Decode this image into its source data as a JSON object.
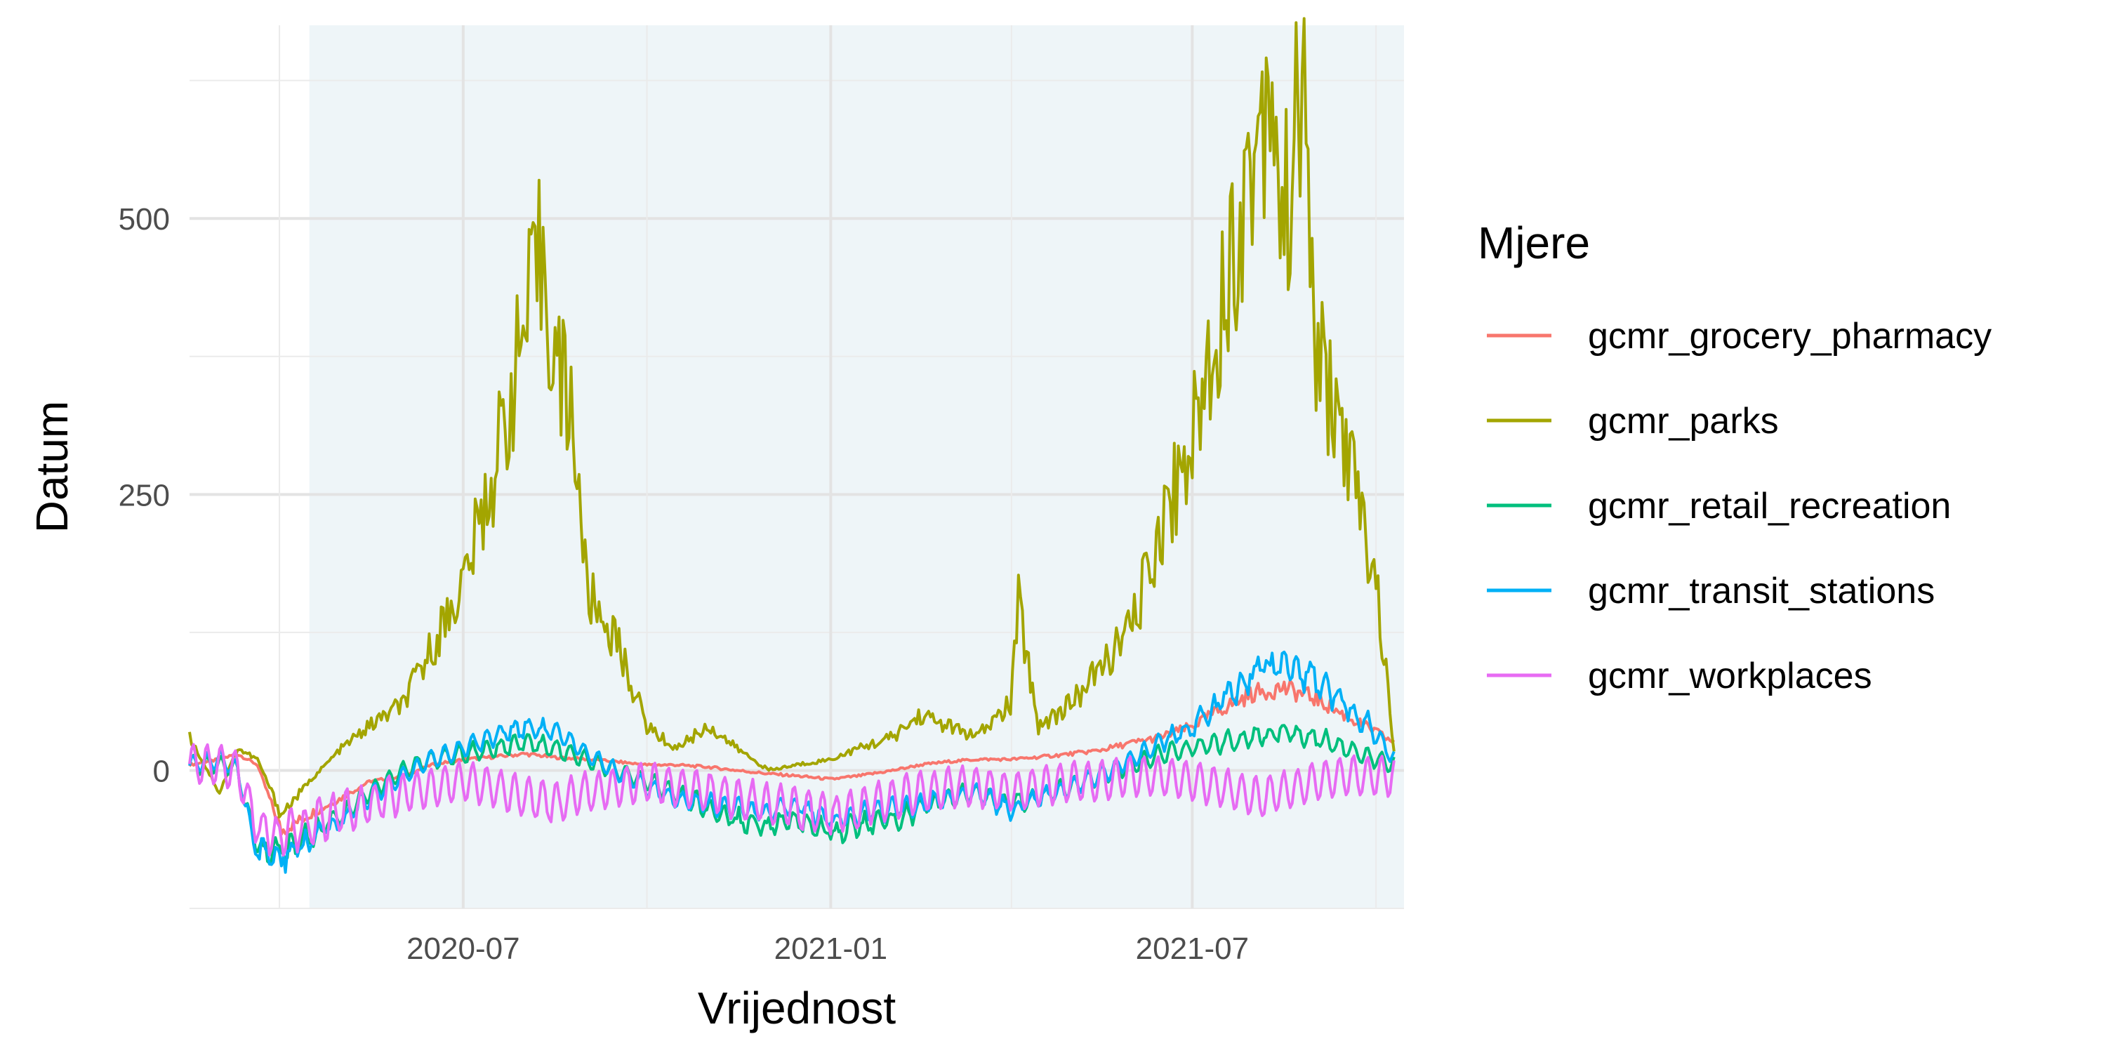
{
  "chart_data": {
    "type": "line",
    "title": "",
    "xlabel": "Vrijednost",
    "ylabel": "Datum",
    "x_range": [
      "2020-02-15",
      "2021-10-15"
    ],
    "ylim": [
      -125,
      675
    ],
    "y_ticks": [
      0,
      250,
      500
    ],
    "y_tick_labels": [
      "0",
      "250",
      "500"
    ],
    "x_ticks": [
      "2020-07-01",
      "2021-01-01",
      "2021-07-01"
    ],
    "x_tick_labels": [
      "2020-07",
      "2021-01",
      "2021-07"
    ],
    "grid": true,
    "background_band": {
      "from": "2020-04-15",
      "to": "2021-10-15",
      "color": "#eef5f8"
    },
    "legend": {
      "title": "Mjere",
      "position": "right"
    },
    "series": [
      {
        "name": "gcmr_grocery_pharmacy",
        "color": "#F8766D",
        "x": [
          "2020-02-15",
          "2020-03-01",
          "2020-03-10",
          "2020-03-20",
          "2020-04-01",
          "2020-04-15",
          "2020-05-01",
          "2020-05-15",
          "2020-06-01",
          "2020-06-15",
          "2020-07-01",
          "2020-07-15",
          "2020-08-01",
          "2020-08-15",
          "2020-09-01",
          "2020-09-15",
          "2020-10-01",
          "2020-10-15",
          "2020-11-01",
          "2020-11-15",
          "2020-12-01",
          "2020-12-15",
          "2021-01-01",
          "2021-01-15",
          "2021-02-01",
          "2021-02-15",
          "2021-03-01",
          "2021-03-15",
          "2021-04-01",
          "2021-04-15",
          "2021-05-01",
          "2021-05-15",
          "2021-06-01",
          "2021-06-15",
          "2021-07-01",
          "2021-07-15",
          "2021-08-01",
          "2021-08-15",
          "2021-09-01",
          "2021-09-15",
          "2021-10-01",
          "2021-10-10"
        ],
        "y": [
          5,
          10,
          15,
          5,
          -55,
          -40,
          -25,
          -10,
          -5,
          5,
          10,
          12,
          15,
          12,
          10,
          8,
          5,
          5,
          3,
          0,
          -3,
          -5,
          -8,
          -5,
          0,
          5,
          8,
          10,
          10,
          12,
          15,
          18,
          25,
          30,
          40,
          55,
          70,
          75,
          65,
          50,
          35,
          25
        ]
      },
      {
        "name": "gcmr_parks",
        "color": "#A3A500",
        "x": [
          "2020-02-15",
          "2020-03-01",
          "2020-03-10",
          "2020-03-20",
          "2020-04-01",
          "2020-04-15",
          "2020-05-01",
          "2020-05-15",
          "2020-06-01",
          "2020-06-15",
          "2020-07-01",
          "2020-07-15",
          "2020-08-01",
          "2020-08-10",
          "2020-08-15",
          "2020-08-25",
          "2020-09-01",
          "2020-09-15",
          "2020-10-01",
          "2020-10-15",
          "2020-11-01",
          "2020-11-15",
          "2020-12-01",
          "2020-12-15",
          "2021-01-01",
          "2021-01-15",
          "2021-02-01",
          "2021-02-15",
          "2021-03-01",
          "2021-03-15",
          "2021-04-01",
          "2021-04-05",
          "2021-04-15",
          "2021-05-01",
          "2021-05-15",
          "2021-06-01",
          "2021-06-15",
          "2021-07-01",
          "2021-07-15",
          "2021-08-01",
          "2021-08-10",
          "2021-08-15",
          "2021-08-25",
          "2021-09-01",
          "2021-09-15",
          "2021-10-01",
          "2021-10-10"
        ],
        "y": [
          30,
          -20,
          20,
          10,
          -40,
          -10,
          20,
          40,
          60,
          110,
          170,
          260,
          400,
          470,
          380,
          320,
          160,
          120,
          40,
          20,
          40,
          20,
          0,
          5,
          10,
          20,
          30,
          50,
          40,
          30,
          60,
          150,
          40,
          60,
          90,
          130,
          220,
          300,
          420,
          560,
          650,
          480,
          620,
          380,
          300,
          170,
          20
        ]
      },
      {
        "name": "gcmr_retail_recreation",
        "color": "#00BF7D",
        "x": [
          "2020-02-15",
          "2020-03-01",
          "2020-03-10",
          "2020-03-20",
          "2020-04-01",
          "2020-04-15",
          "2020-05-01",
          "2020-05-15",
          "2020-06-01",
          "2020-06-15",
          "2020-07-01",
          "2020-07-15",
          "2020-08-01",
          "2020-08-15",
          "2020-09-01",
          "2020-09-15",
          "2020-10-01",
          "2020-10-15",
          "2020-11-01",
          "2020-11-15",
          "2020-12-01",
          "2020-12-15",
          "2021-01-01",
          "2021-01-15",
          "2021-02-01",
          "2021-02-15",
          "2021-03-01",
          "2021-03-15",
          "2021-04-01",
          "2021-04-15",
          "2021-05-01",
          "2021-05-15",
          "2021-06-01",
          "2021-06-15",
          "2021-07-01",
          "2021-07-15",
          "2021-08-01",
          "2021-08-15",
          "2021-09-01",
          "2021-09-15",
          "2021-10-01",
          "2021-10-10"
        ],
        "y": [
          5,
          5,
          0,
          -70,
          -75,
          -60,
          -40,
          -20,
          0,
          10,
          15,
          20,
          25,
          20,
          10,
          0,
          -10,
          -20,
          -35,
          -45,
          -50,
          -45,
          -55,
          -50,
          -45,
          -35,
          -25,
          -20,
          -30,
          -25,
          -15,
          -5,
          5,
          15,
          20,
          25,
          30,
          35,
          30,
          20,
          10,
          5
        ]
      },
      {
        "name": "gcmr_transit_stations",
        "color": "#00B0F6",
        "x": [
          "2020-02-15",
          "2020-03-01",
          "2020-03-10",
          "2020-03-20",
          "2020-04-01",
          "2020-04-15",
          "2020-05-01",
          "2020-05-15",
          "2020-06-01",
          "2020-06-15",
          "2020-07-01",
          "2020-07-15",
          "2020-08-01",
          "2020-08-15",
          "2020-09-01",
          "2020-09-15",
          "2020-10-01",
          "2020-10-15",
          "2020-11-01",
          "2020-11-15",
          "2020-12-01",
          "2020-12-15",
          "2021-01-01",
          "2021-01-15",
          "2021-02-01",
          "2021-02-15",
          "2021-03-01",
          "2021-03-15",
          "2021-04-01",
          "2021-04-15",
          "2021-05-01",
          "2021-05-15",
          "2021-06-01",
          "2021-06-15",
          "2021-07-01",
          "2021-07-15",
          "2021-08-01",
          "2021-08-15",
          "2021-09-01",
          "2021-09-15",
          "2021-10-01",
          "2021-10-10"
        ],
        "y": [
          5,
          10,
          0,
          -75,
          -80,
          -65,
          -45,
          -25,
          -5,
          10,
          20,
          30,
          40,
          35,
          15,
          0,
          -15,
          -25,
          -30,
          -35,
          -40,
          -30,
          -45,
          -40,
          -35,
          -30,
          -25,
          -20,
          -35,
          -25,
          -15,
          -5,
          10,
          25,
          40,
          60,
          90,
          100,
          80,
          60,
          35,
          10
        ]
      },
      {
        "name": "gcmr_workplaces",
        "color": "#E76BF3",
        "x": [
          "2020-02-15",
          "2020-03-01",
          "2020-03-10",
          "2020-03-20",
          "2020-04-01",
          "2020-04-15",
          "2020-05-01",
          "2020-05-15",
          "2020-06-01",
          "2020-06-15",
          "2020-07-01",
          "2020-07-15",
          "2020-08-01",
          "2020-08-15",
          "2020-09-01",
          "2020-09-15",
          "2020-10-01",
          "2020-10-15",
          "2020-11-01",
          "2020-11-15",
          "2020-12-01",
          "2020-12-15",
          "2021-01-01",
          "2021-01-15",
          "2021-02-01",
          "2021-02-15",
          "2021-03-01",
          "2021-03-15",
          "2021-04-01",
          "2021-04-15",
          "2021-05-01",
          "2021-05-15",
          "2021-06-01",
          "2021-06-15",
          "2021-07-01",
          "2021-07-15",
          "2021-08-01",
          "2021-08-15",
          "2021-09-01",
          "2021-09-15",
          "2021-10-01",
          "2021-10-10"
        ],
        "y": [
          5,
          5,
          0,
          -50,
          -60,
          -50,
          -40,
          -30,
          -20,
          -15,
          -10,
          -15,
          -25,
          -30,
          -20,
          -15,
          -10,
          -15,
          -20,
          -25,
          -30,
          -35,
          -40,
          -35,
          -25,
          -20,
          -15,
          -15,
          -20,
          -15,
          -10,
          -10,
          -5,
          -5,
          -10,
          -15,
          -25,
          -20,
          -10,
          -5,
          -5,
          -5
        ]
      }
    ]
  }
}
